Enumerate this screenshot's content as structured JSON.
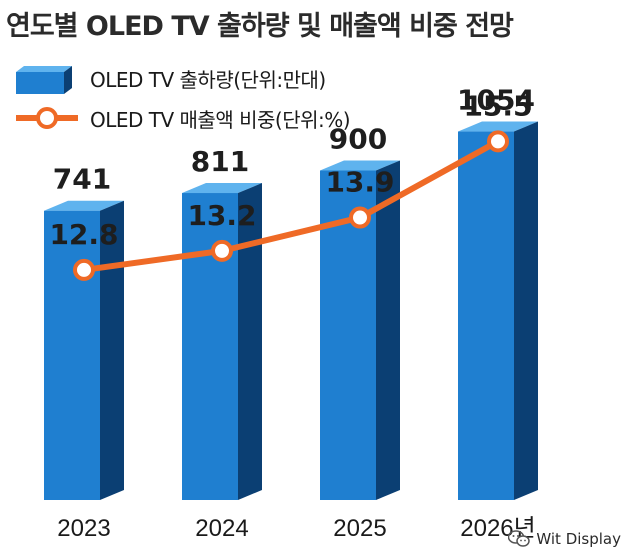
{
  "chart_data": {
    "type": "bar",
    "title": "연도별 OLED TV 출하량 및 매출액 비중 전망",
    "categories": [
      "2023",
      "2024",
      "2025",
      "2026년"
    ],
    "series": [
      {
        "name": "OLED TV 출하량(단위:만대)",
        "type": "bar",
        "values": [
          741,
          811,
          900,
          1054
        ],
        "labels": [
          "741",
          "811",
          "900",
          "1054"
        ],
        "color": "#1f7fd0"
      },
      {
        "name": "OLED TV 매출액 비중(단위:%)",
        "type": "line",
        "values": [
          12.8,
          13.2,
          13.9,
          15.5
        ],
        "labels": [
          "12.8",
          "13.2",
          "13.9",
          "15.5"
        ],
        "color": "#ef6a26"
      }
    ],
    "legend_position": "top-left",
    "grid": false
  },
  "watermark": {
    "text": "Wit Display",
    "icon": "wechat-icon"
  }
}
